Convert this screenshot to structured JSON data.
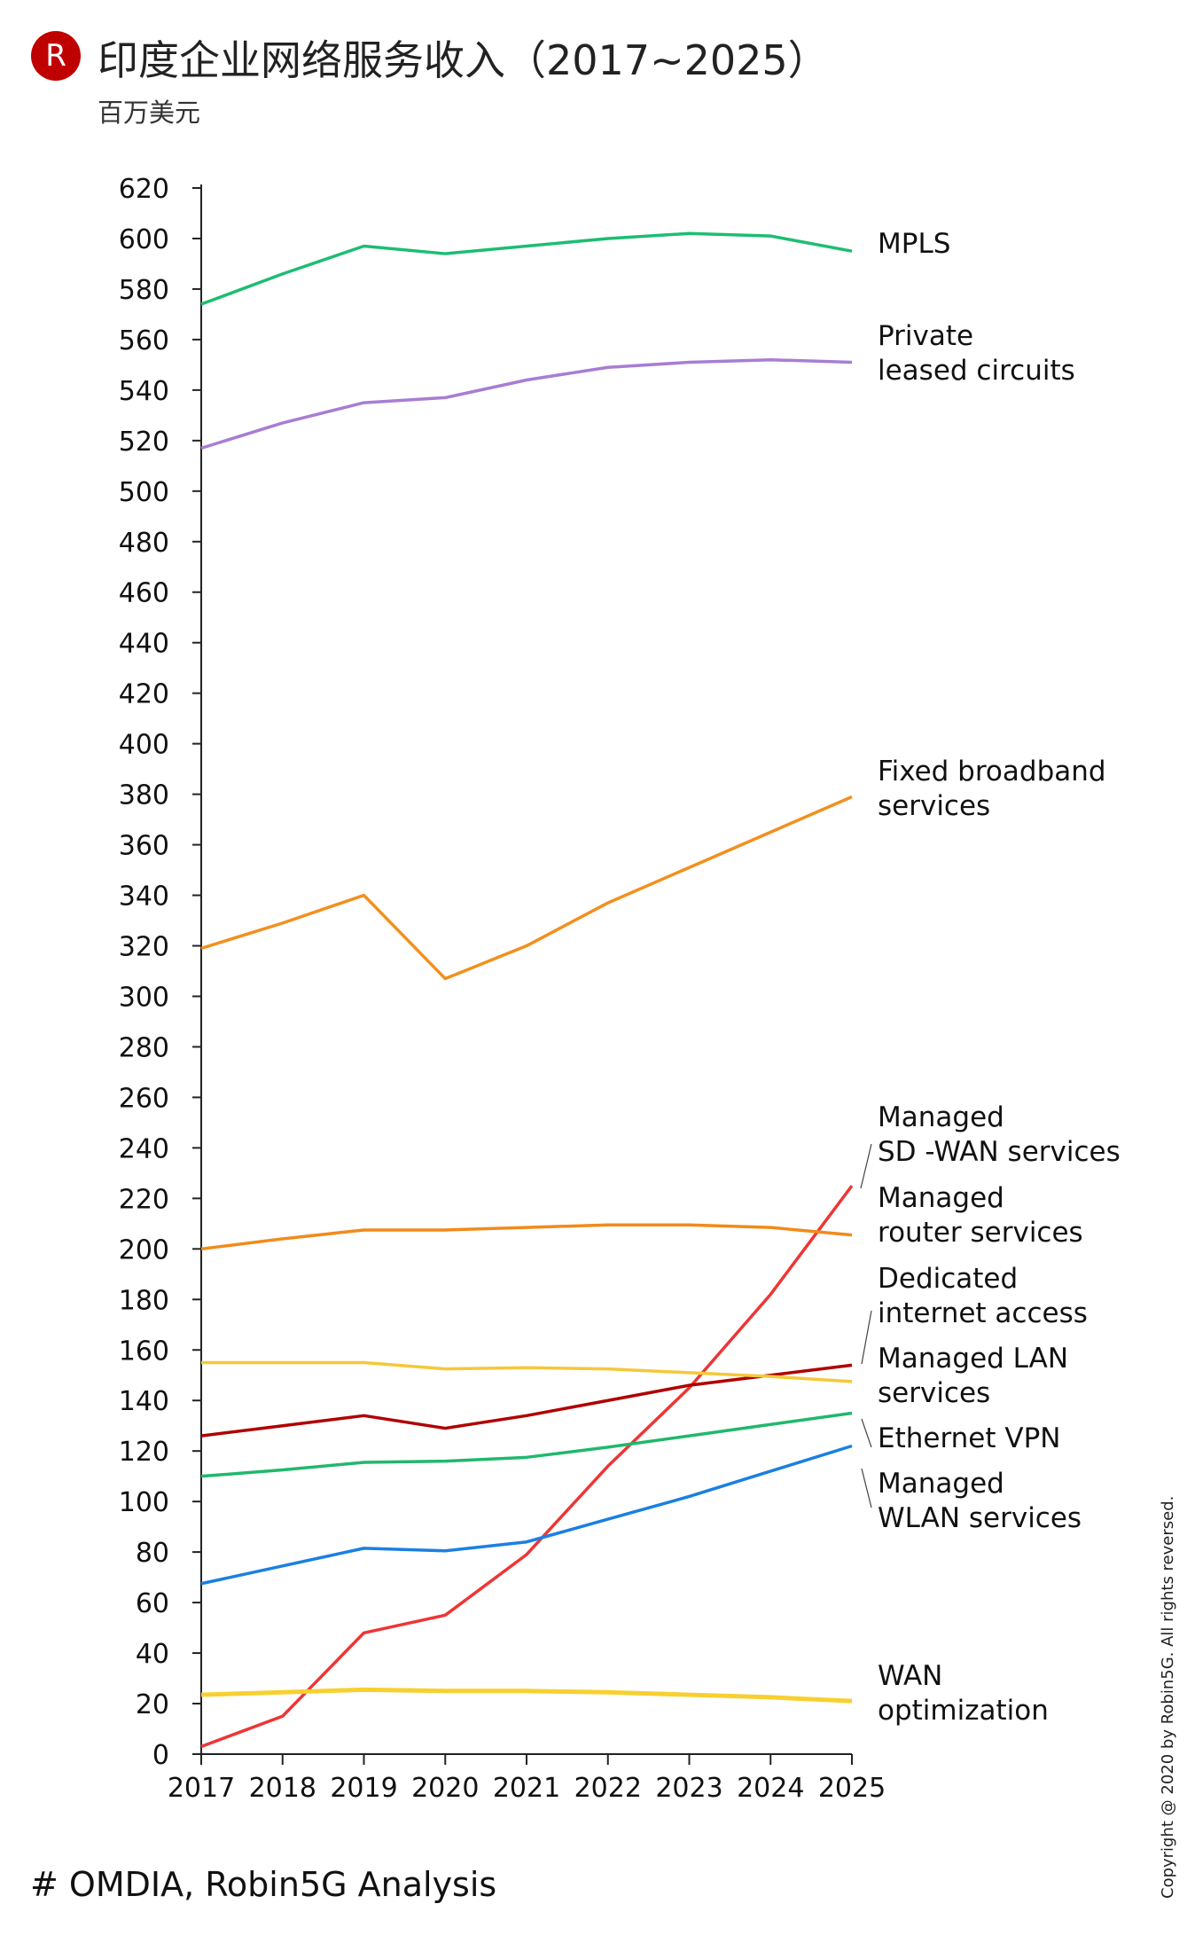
{
  "header": {
    "logo_letter": "R",
    "title": "印度企业网络服务收入（2017~2025）",
    "subtitle": "百万美元"
  },
  "footer": {
    "source": "# OMDIA, Robin5G Analysis",
    "copyright": "Copyright @ 2020 by Robin5G. All rights reversed."
  },
  "chart_data": {
    "type": "line",
    "title": "印度企业网络服务收入（2017~2025）",
    "ylabel": "百万美元",
    "xlabel": "",
    "categories": [
      "2017",
      "2018",
      "2019",
      "2020",
      "2021",
      "2022",
      "2023",
      "2024",
      "2025"
    ],
    "ylim": [
      0,
      620
    ],
    "yticks": [
      0,
      20,
      40,
      60,
      80,
      100,
      120,
      140,
      160,
      180,
      200,
      220,
      240,
      260,
      280,
      300,
      320,
      340,
      360,
      380,
      400,
      420,
      440,
      460,
      480,
      500,
      520,
      540,
      560,
      580,
      600,
      620
    ],
    "grid": false,
    "legend": "inline-right",
    "series": [
      {
        "name": "MPLS",
        "label_lines": [
          "MPLS"
        ],
        "color": "#1dbd72",
        "values": [
          574,
          586,
          597,
          594,
          597,
          600,
          602,
          601,
          595
        ]
      },
      {
        "name": "Private leased circuits",
        "label_lines": [
          "Private",
          "leased circuits"
        ],
        "color": "#a87dd4",
        "values": [
          517,
          527,
          535,
          537,
          544,
          549,
          551,
          552,
          551
        ]
      },
      {
        "name": "Fixed broadband services",
        "label_lines": [
          "Fixed broadband",
          "services"
        ],
        "color": "#f2901d",
        "values": [
          319,
          329,
          340,
          307,
          320,
          337,
          351,
          365,
          379
        ]
      },
      {
        "name": "Managed SD -WAN services",
        "label_lines": [
          "Managed",
          "SD -WAN services"
        ],
        "color": "#ee3535",
        "values": [
          3,
          15,
          48,
          55,
          79,
          114,
          145,
          182,
          225
        ]
      },
      {
        "name": "Managed router services",
        "label_lines": [
          "Managed",
          "router services"
        ],
        "color": "#f28a1a",
        "values": [
          200,
          204,
          207.5,
          207.5,
          208.5,
          209.5,
          209.5,
          208.5,
          205.5
        ]
      },
      {
        "name": "Dedicated internet access",
        "label_lines": [
          "Dedicated",
          "internet access"
        ],
        "color": "#b00000",
        "values": [
          126,
          130,
          134,
          129,
          134,
          140,
          146,
          150,
          154
        ]
      },
      {
        "name": "Managed LAN services",
        "label_lines": [
          "Managed LAN",
          "services"
        ],
        "color": "#f5c83a",
        "values": [
          155,
          155,
          155,
          152.5,
          153,
          152.5,
          151,
          149.5,
          147.5
        ]
      },
      {
        "name": "Ethernet VPN",
        "label_lines": [
          "Ethernet VPN"
        ],
        "color": "#20b86c",
        "values": [
          110,
          112.5,
          115.5,
          116,
          117.5,
          121.5,
          126,
          130.5,
          135
        ]
      },
      {
        "name": "Managed WLAN services",
        "label_lines": [
          "Managed",
          "WLAN services"
        ],
        "color": "#1a80e0",
        "values": [
          67.5,
          74.5,
          81.5,
          80.5,
          84,
          93,
          102,
          112,
          122
        ]
      },
      {
        "name": "WAN optimization",
        "label_lines": [
          "WAN",
          "optimization"
        ],
        "color": "#f7d030",
        "values": [
          23.5,
          24.5,
          25.5,
          25,
          25,
          24.5,
          23.5,
          22.5,
          21
        ]
      }
    ]
  }
}
